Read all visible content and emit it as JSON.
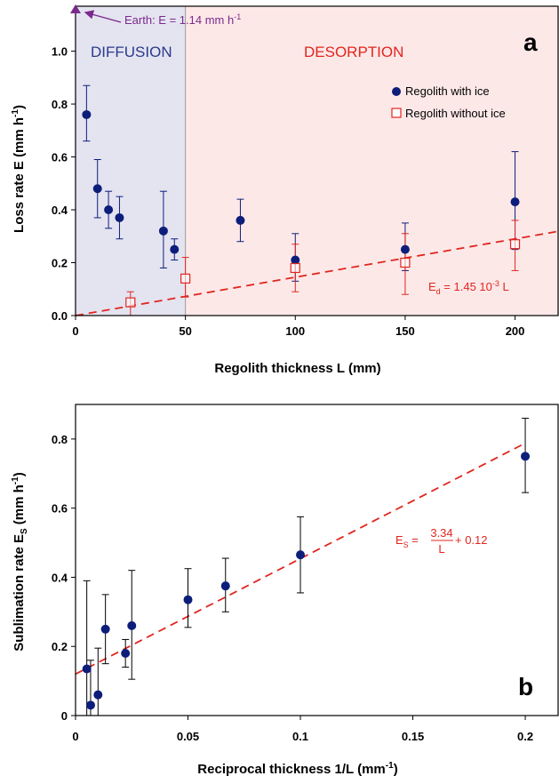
{
  "chart_data": [
    {
      "panel": "a",
      "type": "scatter",
      "xlabel": "Regolith thickness L (mm)",
      "ylabel_main": "Loss rate E (mm h",
      "ylabel_sup": "-1",
      "ylabel_end": ")",
      "xlim": [
        0,
        220
      ],
      "ylim": [
        0,
        1.17
      ],
      "x_ticks": [
        "0",
        "50",
        "100",
        "150",
        "200"
      ],
      "y_ticks": [
        "0.0",
        "0.2",
        "0.4",
        "0.6",
        "0.8",
        "1.0"
      ],
      "regions": [
        {
          "name": "DIFFUSION",
          "x_range": [
            0,
            50
          ],
          "fill": "#e4e3f0",
          "text_color": "#2a3a8c"
        },
        {
          "name": "DESORPTION",
          "x_range": [
            50,
            220
          ],
          "fill": "#fde8e8",
          "text_color": "#e0261f"
        }
      ],
      "series": [
        {
          "name": "Regolith with ice",
          "marker": "filled-circle",
          "color": "#0d1e7a",
          "x": [
            5,
            10,
            15,
            20,
            40,
            45,
            75,
            100,
            150,
            200
          ],
          "y": [
            0.76,
            0.48,
            0.4,
            0.37,
            0.32,
            0.25,
            0.36,
            0.21,
            0.25,
            0.43
          ],
          "err_low": [
            0.66,
            0.37,
            0.33,
            0.29,
            0.18,
            0.21,
            0.28,
            0.13,
            0.17,
            0.25
          ],
          "err_high": [
            0.87,
            0.59,
            0.47,
            0.45,
            0.47,
            0.29,
            0.44,
            0.31,
            0.35,
            0.62
          ]
        },
        {
          "name": "Regolith without ice",
          "marker": "open-square",
          "color": "#e0261f",
          "x": [
            25,
            50,
            100,
            150,
            200
          ],
          "y": [
            0.05,
            0.14,
            0.18,
            0.2,
            0.27
          ],
          "err_low": [
            0.0,
            0.07,
            0.09,
            0.08,
            0.17
          ],
          "err_high": [
            0.09,
            0.22,
            0.27,
            0.31,
            0.36
          ]
        }
      ],
      "fit": {
        "label_prefix": "E",
        "label_sub": "d",
        "label_rest": " = 1.45 10",
        "label_sup": "-3",
        "label_end": " L",
        "slope": 0.00145,
        "intercept": 0,
        "color": "#e0261f"
      },
      "earth_annotation": {
        "text_main": "Earth: E = 1.14 mm h",
        "text_sup": "-1",
        "x": 0,
        "y": 1.14,
        "color": "#7a2a8c"
      },
      "legend_position": "top-right",
      "panel_letter": "a"
    },
    {
      "panel": "b",
      "type": "scatter",
      "xlabel_main": "Reciprocal thickness 1/L (mm",
      "xlabel_sup": "-1",
      "xlabel_end": ")",
      "ylabel_main": "Sublimation rate E",
      "ylabel_sub": "S",
      "ylabel_mid": " (mm h",
      "ylabel_sup": "-1",
      "ylabel_end": ")",
      "xlim": [
        0,
        0.215
      ],
      "ylim": [
        0,
        0.9
      ],
      "x_ticks": [
        "0",
        "0.05",
        "0.1",
        "0.15",
        "0.2"
      ],
      "y_ticks": [
        "0",
        "0.2",
        "0.4",
        "0.6",
        "0.8"
      ],
      "series": [
        {
          "name": "",
          "marker": "filled-circle",
          "color": "#0d1e7a",
          "x": [
            0.005,
            0.0067,
            0.01,
            0.0133,
            0.0222,
            0.025,
            0.05,
            0.0667,
            0.1,
            0.2
          ],
          "y": [
            0.135,
            0.03,
            0.06,
            0.25,
            0.18,
            0.26,
            0.335,
            0.375,
            0.465,
            0.75
          ],
          "err_low": [
            0.0,
            0.0,
            0.0,
            0.15,
            0.14,
            0.105,
            0.255,
            0.3,
            0.355,
            0.645
          ],
          "err_high": [
            0.39,
            0.16,
            0.195,
            0.35,
            0.22,
            0.42,
            0.425,
            0.455,
            0.575,
            0.86
          ]
        }
      ],
      "fit": {
        "label_lhs": "E",
        "label_sub": "S",
        "label_eq": " = ",
        "frac_num": "3.34",
        "frac_den": "L",
        "label_rest": " + 0.12",
        "slope": 3.34,
        "intercept": 0.12,
        "color": "#e0261f"
      },
      "panel_letter": "b"
    }
  ]
}
